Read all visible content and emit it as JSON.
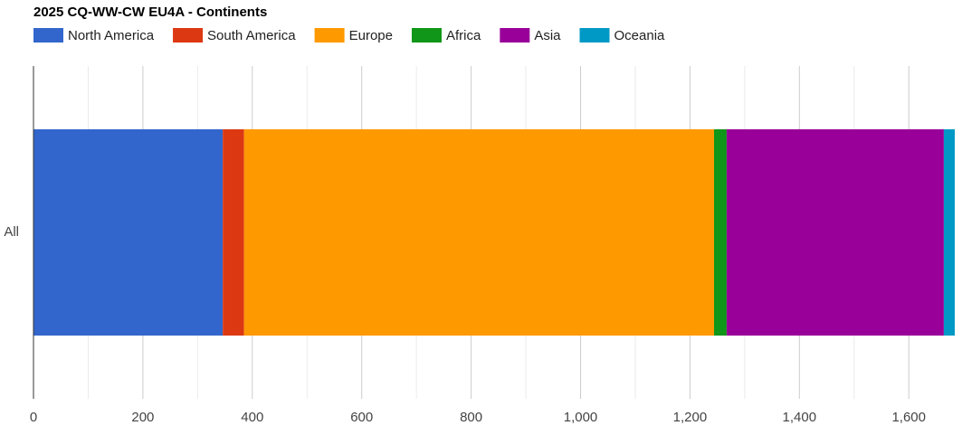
{
  "chart_data": {
    "type": "stacked_bar_horizontal",
    "title": "2025 CQ-WW-CW EU4A - Continents",
    "categories": [
      "All"
    ],
    "series": [
      {
        "name": "North America",
        "color": "#3366cc",
        "values": [
          346
        ]
      },
      {
        "name": "South America",
        "color": "#dc3912",
        "values": [
          39
        ]
      },
      {
        "name": "Europe",
        "color": "#ff9900",
        "values": [
          859
        ]
      },
      {
        "name": "Africa",
        "color": "#109618",
        "values": [
          23
        ]
      },
      {
        "name": "Asia",
        "color": "#990099",
        "values": [
          397
        ]
      },
      {
        "name": "Oceania",
        "color": "#0099c6",
        "values": [
          20
        ]
      }
    ],
    "xlim": [
      0,
      1684
    ],
    "xticks": [
      0,
      200,
      400,
      600,
      800,
      {
        "value": 1000,
        "label": "1,000"
      },
      {
        "value": 1200,
        "label": "1,200"
      },
      {
        "value": 1400,
        "label": "1,400"
      },
      {
        "value": 1600,
        "label": "1,600"
      }
    ],
    "grid": true,
    "minor_grid": true,
    "legend": "top"
  }
}
